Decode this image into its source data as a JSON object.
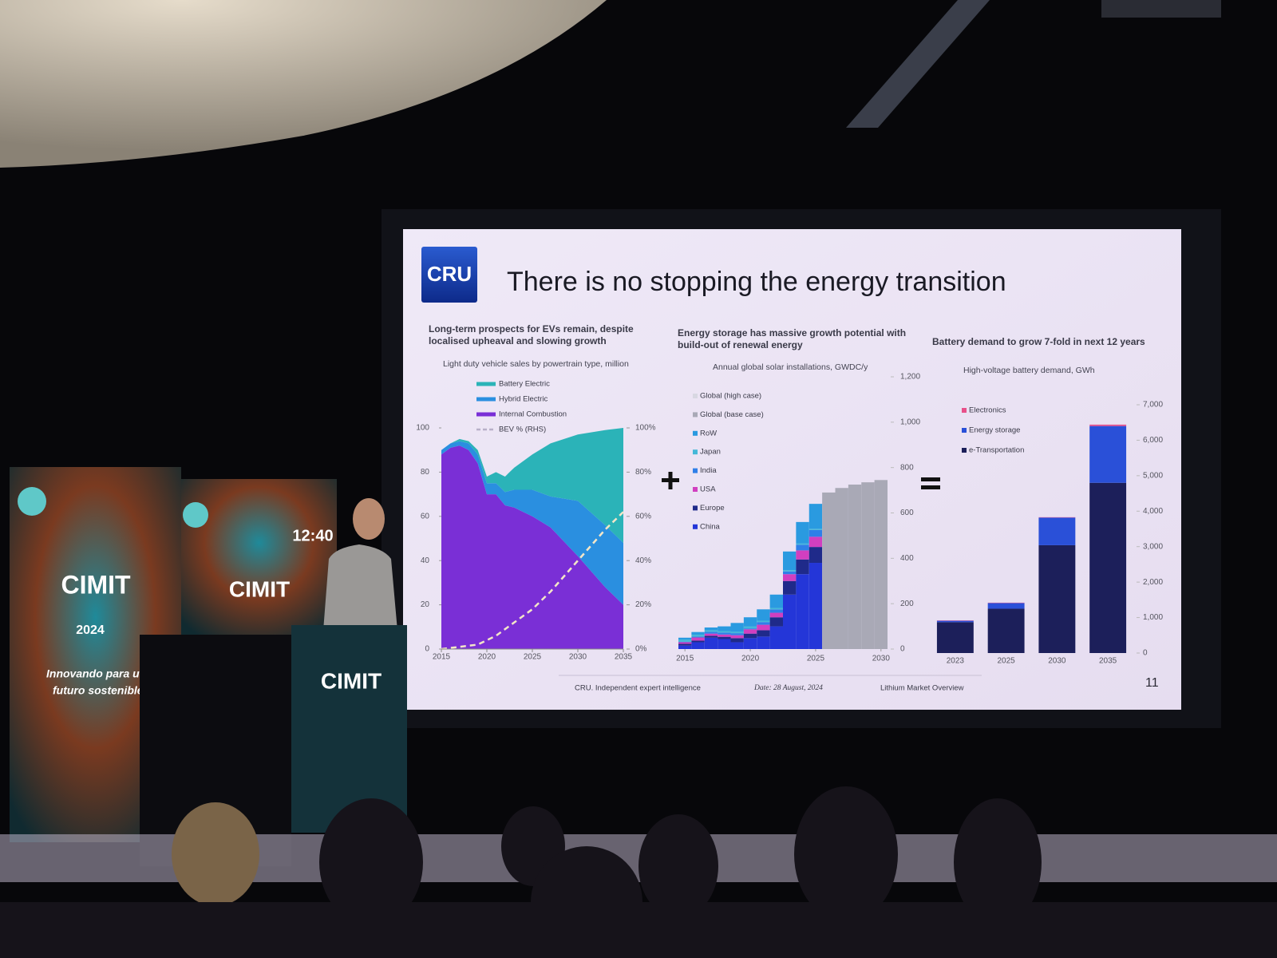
{
  "venue": {
    "logo": "CIMIT",
    "year": "2024",
    "clock": "12:40",
    "tagline": [
      "Innovando para u",
      "futuro sostenible"
    ]
  },
  "slide": {
    "logo": "CRU",
    "title": "There is no stopping the energy transition",
    "footer": {
      "source": "CRU. Independent expert intelligence",
      "date": "Date: 28 August, 2024",
      "deck": "Lithium Market Overview",
      "page": "11"
    }
  },
  "chart_data": [
    {
      "type": "area",
      "title": "Long-term prospects for EVs remain, despite localised upheaval and slowing growth",
      "subtitle": "Light duty vehicle sales by powertrain type, million",
      "x": [
        2015,
        2016,
        2017,
        2018,
        2019,
        2020,
        2021,
        2022,
        2023,
        2025,
        2027,
        2030,
        2033,
        2035
      ],
      "series": [
        {
          "name": "Battery Electric",
          "color": "#2bb3b8",
          "values": [
            0,
            0,
            1,
            1,
            2,
            3,
            5,
            7,
            10,
            16,
            24,
            30,
            43,
            52
          ]
        },
        {
          "name": "Hybrid Electric",
          "color": "#2a8fe0",
          "values": [
            2,
            2,
            2,
            3,
            4,
            5,
            5,
            6,
            8,
            12,
            14,
            25,
            28,
            28
          ]
        },
        {
          "name": "Internal Combustion",
          "color": "#7a2fd6",
          "values": [
            88,
            91,
            92,
            90,
            84,
            70,
            70,
            65,
            64,
            60,
            55,
            42,
            28,
            20
          ]
        },
        {
          "name": "BEV % (RHS)",
          "color": "#f3e6c8",
          "axis": "y2",
          "dashed": true,
          "values": [
            0,
            0.5,
            1,
            1.5,
            2,
            4,
            6,
            9,
            12,
            18,
            26,
            40,
            54,
            62
          ]
        }
      ],
      "xlim": [
        2015,
        2035
      ],
      "xticks": [
        2015,
        2020,
        2025,
        2030,
        2035
      ],
      "ylim": [
        0,
        100
      ],
      "yticks": [
        0,
        20,
        40,
        60,
        80,
        100
      ],
      "y2lim": [
        0,
        100
      ],
      "y2ticks": [
        {
          "value": 0,
          "label": "0%"
        },
        {
          "value": 20,
          "label": "20%"
        },
        {
          "value": 40,
          "label": "40%"
        },
        {
          "value": 60,
          "label": "60%"
        },
        {
          "value": 80,
          "label": "80%"
        },
        {
          "value": 100,
          "label": "100%"
        }
      ]
    },
    {
      "type": "bar",
      "stacked": true,
      "title": "Energy storage has massive growth potential with build-out of renewal energy",
      "subtitle": "Annual global solar installations, GWDC/y",
      "x": [
        2015,
        2016,
        2017,
        2018,
        2019,
        2020,
        2021,
        2022,
        2023,
        2024,
        2025,
        2026,
        2027,
        2028,
        2029,
        2030
      ],
      "series": [
        {
          "name": "Global (high case)",
          "color": "#d8d8e2",
          "values": [
            null,
            null,
            null,
            null,
            null,
            null,
            null,
            null,
            null,
            null,
            null,
            null,
            null,
            null,
            null,
            null
          ]
        },
        {
          "name": "Global (base case)",
          "color": "#a9a9b6",
          "values": [
            null,
            null,
            null,
            null,
            null,
            null,
            null,
            null,
            null,
            null,
            null,
            690,
            710,
            725,
            735,
            745
          ]
        },
        {
          "name": "RoW",
          "color": "#2a9ae0",
          "values": [
            8,
            12,
            12,
            21,
            39,
            41,
            50,
            59,
            82,
            95,
            110,
            null,
            null,
            null,
            null,
            null
          ]
        },
        {
          "name": "Japan",
          "color": "#44b8d8",
          "values": [
            10,
            8,
            7,
            6,
            6,
            8,
            6,
            6,
            6,
            5,
            5,
            null,
            null,
            null,
            null,
            null
          ]
        },
        {
          "name": "India",
          "color": "#2f7fe8",
          "values": [
            2,
            4,
            8,
            9,
            9,
            4,
            12,
            15,
            12,
            25,
            30,
            null,
            null,
            null,
            null,
            null
          ]
        },
        {
          "name": "USA",
          "color": "#d13fc0",
          "values": [
            7,
            14,
            10,
            10,
            13,
            19,
            24,
            20,
            30,
            40,
            45,
            null,
            null,
            null,
            null,
            null
          ]
        },
        {
          "name": "Europe",
          "color": "#1f2a8a",
          "values": [
            8,
            7,
            8,
            10,
            18,
            20,
            28,
            40,
            60,
            65,
            70,
            null,
            null,
            null,
            null,
            null
          ]
        },
        {
          "name": "China",
          "color": "#2436d8",
          "values": [
            15,
            30,
            50,
            44,
            30,
            48,
            55,
            100,
            240,
            330,
            380,
            null,
            null,
            null,
            null,
            null
          ]
        }
      ],
      "xlim": [
        2014.5,
        2030.5
      ],
      "xticks": [
        2015,
        2020,
        2025,
        2030
      ],
      "ylim": [
        0,
        1200
      ],
      "yticks": [
        0,
        200,
        400,
        600,
        800,
        {
          "value": 1000,
          "label": "1,000"
        },
        {
          "value": 1200,
          "label": "1,200"
        }
      ]
    },
    {
      "type": "bar",
      "stacked": true,
      "title": "Battery demand to grow 7-fold in next 12 years",
      "subtitle": "High-voltage battery demand, GWh",
      "categories": [
        "2023",
        "2025",
        "2030",
        "2035"
      ],
      "series": [
        {
          "name": "Electronics",
          "color": "#e8508a",
          "values": [
            10,
            10,
            10,
            40
          ]
        },
        {
          "name": "Energy storage",
          "color": "#2a50d8",
          "values": [
            40,
            160,
            780,
            1600
          ]
        },
        {
          "name": "e-Transportation",
          "color": "#1c1f5a",
          "values": [
            870,
            1250,
            3040,
            4800
          ]
        }
      ],
      "ylim": [
        0,
        7000
      ],
      "yticks": [
        0,
        {
          "value": 1000,
          "label": "1,000"
        },
        {
          "value": 2000,
          "label": "2,000"
        },
        {
          "value": 3000,
          "label": "3,000"
        },
        {
          "value": 4000,
          "label": "4,000"
        },
        {
          "value": 5000,
          "label": "5,000"
        },
        {
          "value": 6000,
          "label": "6,000"
        },
        {
          "value": 7000,
          "label": "7,000"
        }
      ]
    }
  ]
}
